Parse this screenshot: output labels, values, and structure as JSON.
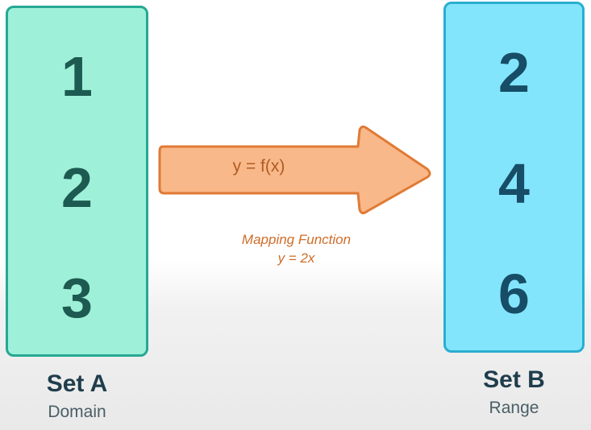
{
  "set_a": {
    "values": [
      "1",
      "2",
      "3"
    ],
    "name": "Set A",
    "role": "Domain",
    "fill_color": "#9ef1d8",
    "border_color": "#26a893",
    "text_color": "#1d5a51"
  },
  "set_b": {
    "values": [
      "2",
      "4",
      "6"
    ],
    "name": "Set B",
    "role": "Range",
    "fill_color": "#83e5fb",
    "border_color": "#2aaed0",
    "text_color": "#174d66"
  },
  "arrow": {
    "label": "y = f(x)",
    "fill_color": "#f8b889",
    "border_color": "#e07a35"
  },
  "caption": {
    "title": "Mapping Function",
    "formula": "y = 2x",
    "color": "#cf6d29"
  }
}
